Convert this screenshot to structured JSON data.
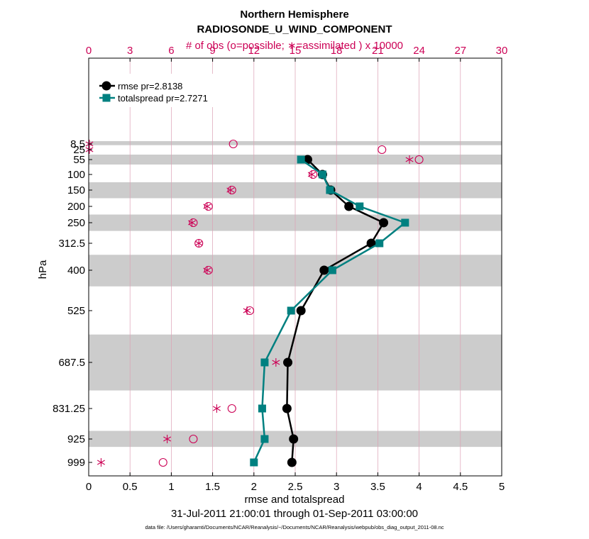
{
  "chart_data": {
    "type": "line",
    "title": "Northern Hemisphere",
    "subtitle": "RADIOSONDE_U_WIND_COMPONENT",
    "top_axis_label": "# of obs (o=possible; ∗=assimilated ) x 10000",
    "xlabel": "rmse and totalspread",
    "ylabel": "hPa",
    "date_range": "31-Jul-2011 21:00:01 through 01-Sep-2011 03:00:00",
    "footnote": "data file: /Users/gharamti/Documents/NCAR/Reanalysis/~/Documents/NCAR/Reanalysis/webpub/obs_diag_output_2011-08.nc",
    "xlim": [
      0,
      5
    ],
    "x_ticks": [
      "0",
      "0.5",
      "1",
      "1.5",
      "2",
      "2.5",
      "3",
      "3.5",
      "4",
      "4.5",
      "5"
    ],
    "top_xlim": [
      0,
      30
    ],
    "top_ticks": [
      "0",
      "3",
      "6",
      "9",
      "12",
      "15",
      "18",
      "21",
      "24",
      "27",
      "30"
    ],
    "levels": [
      8.5,
      25,
      55,
      100,
      150,
      200,
      250,
      312.5,
      400,
      525,
      687.5,
      831.25,
      925,
      999
    ],
    "level_labels": [
      "8.5",
      "25",
      "55",
      "100",
      "150",
      "200",
      "250",
      "312.5",
      "400",
      "525",
      "687.5",
      "831.25",
      "925",
      "999"
    ],
    "bands": [
      [
        5,
        12
      ],
      [
        40,
        70
      ],
      [
        125,
        175
      ],
      [
        225,
        275
      ],
      [
        350,
        450
      ],
      [
        600,
        775
      ],
      [
        900,
        950
      ]
    ],
    "legend_position": "top-left",
    "series": [
      {
        "name": "rmse pr=2.8138",
        "color": "#000000",
        "marker": "circle",
        "levels": [
          55,
          100,
          150,
          200,
          250,
          312.5,
          400,
          525,
          687.5,
          831.25,
          925,
          999
        ],
        "values": [
          2.65,
          2.83,
          2.93,
          3.15,
          3.57,
          3.42,
          2.85,
          2.57,
          2.41,
          2.4,
          2.48,
          2.46
        ]
      },
      {
        "name": "totalspread pr=2.7271",
        "color": "#008080",
        "marker": "square",
        "levels": [
          55,
          100,
          150,
          200,
          250,
          312.5,
          400,
          525,
          687.5,
          831.25,
          925,
          999
        ],
        "values": [
          2.57,
          2.83,
          2.92,
          3.28,
          3.83,
          3.52,
          2.95,
          2.45,
          2.13,
          2.1,
          2.13,
          2.0
        ]
      }
    ],
    "obs_possible": {
      "levels": [
        8.5,
        25,
        55,
        100,
        150,
        200,
        250,
        312.5,
        400,
        525,
        831.25,
        925,
        999
      ],
      "values": [
        10.5,
        21.3,
        24.0,
        16.3,
        10.4,
        8.7,
        7.6,
        8.0,
        8.7,
        11.7,
        10.4,
        7.6,
        5.4
      ]
    },
    "obs_assimilated": {
      "levels": [
        8.5,
        25,
        55,
        100,
        150,
        200,
        250,
        312.5,
        400,
        525,
        687.5,
        831.25,
        925,
        999
      ],
      "values": [
        0.05,
        0.05,
        23.3,
        16.2,
        10.3,
        8.6,
        7.5,
        8.0,
        8.6,
        11.5,
        13.6,
        9.3,
        5.7,
        0.9
      ]
    },
    "colors": {
      "obs": "#cc0055",
      "band": "#cccccc",
      "grid": "#dca0b4"
    }
  }
}
